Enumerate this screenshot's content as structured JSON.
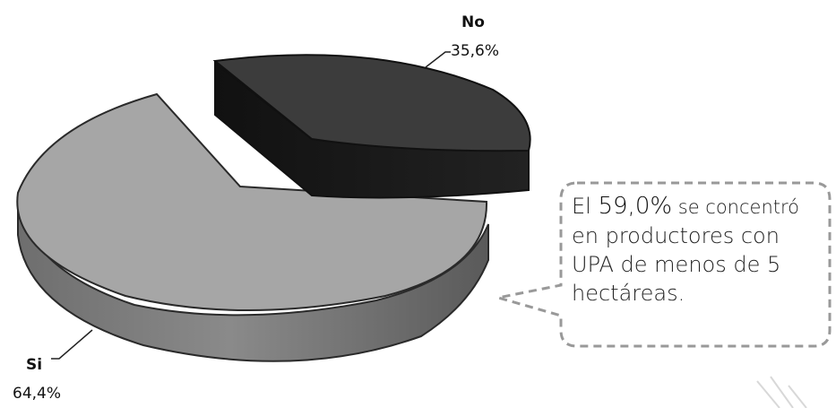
{
  "chart_data": {
    "type": "pie",
    "style": "3d-exploded",
    "slices": [
      {
        "name": "No",
        "value": 35.6,
        "display": "35,6%",
        "color": "#3c3c3c",
        "exploded": true
      },
      {
        "name": "Si",
        "value": 64.4,
        "display": "64,4%",
        "color": "#a6a6a6",
        "exploded": false
      }
    ],
    "annotation": {
      "prefix": "El ",
      "highlight": "59,0%",
      "text_after": " se concentró",
      "lines": [
        "en productores con",
        "UPA de menos de 5",
        "hectáreas."
      ]
    }
  }
}
